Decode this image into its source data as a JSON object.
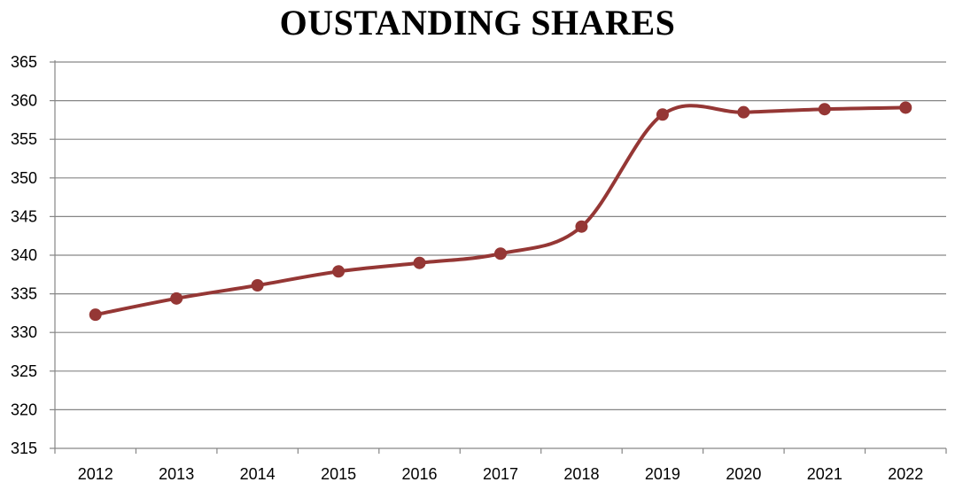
{
  "chart_data": {
    "type": "line",
    "title": "OUSTANDING SHARES",
    "xlabel": "",
    "ylabel": "",
    "categories": [
      "2012",
      "2013",
      "2014",
      "2015",
      "2016",
      "2017",
      "2018",
      "2019",
      "2020",
      "2021",
      "2022"
    ],
    "series": [
      {
        "values": [
          332.3,
          334.4,
          336.1,
          337.9,
          339.0,
          340.2,
          343.7,
          358.2,
          358.5,
          358.9,
          359.1
        ]
      }
    ],
    "ylim": [
      315,
      365
    ],
    "yticks": [
      "315",
      "320",
      "325",
      "330",
      "335",
      "340",
      "345",
      "350",
      "355",
      "360",
      "365"
    ],
    "grid": true,
    "legend": "none",
    "colors": {
      "line": "#953735",
      "marker": "#953735",
      "grid": "#868686",
      "axis": "#868686"
    }
  }
}
